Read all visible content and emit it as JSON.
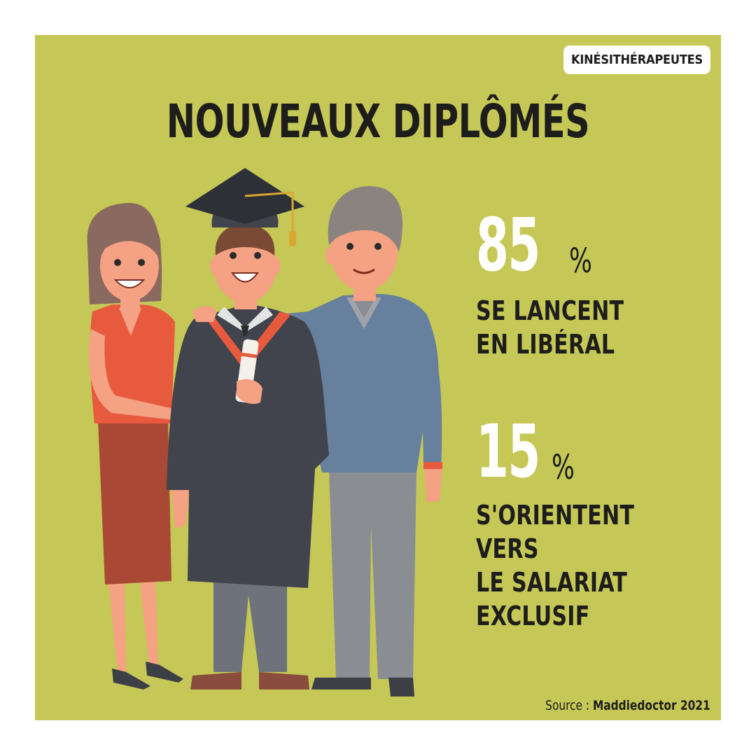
{
  "tag": "KINÉSITHÉRAPEUTES",
  "title": "NOUVEAUX DIPLÔMÉS",
  "stats": [
    {
      "value": "85",
      "unit": "%",
      "lines": [
        "SE LANCENT",
        "EN LIBÉRAL"
      ]
    },
    {
      "value": "15",
      "unit": "%",
      "lines": [
        "S'ORIENTENT",
        "VERS",
        "LE SALARIAT",
        "EXCLUSIF"
      ]
    }
  ],
  "source": {
    "label": "Source :",
    "name": "Maddiedoctor 2021"
  },
  "colors": {
    "background": "#c5c756",
    "title": "#1d1d1b",
    "highlight": "#ffffff"
  },
  "illustration": {
    "figures": [
      "mother-figure",
      "graduate-figure",
      "father-figure"
    ],
    "objects": [
      "graduation-cap-icon",
      "diploma-scroll-icon"
    ]
  }
}
